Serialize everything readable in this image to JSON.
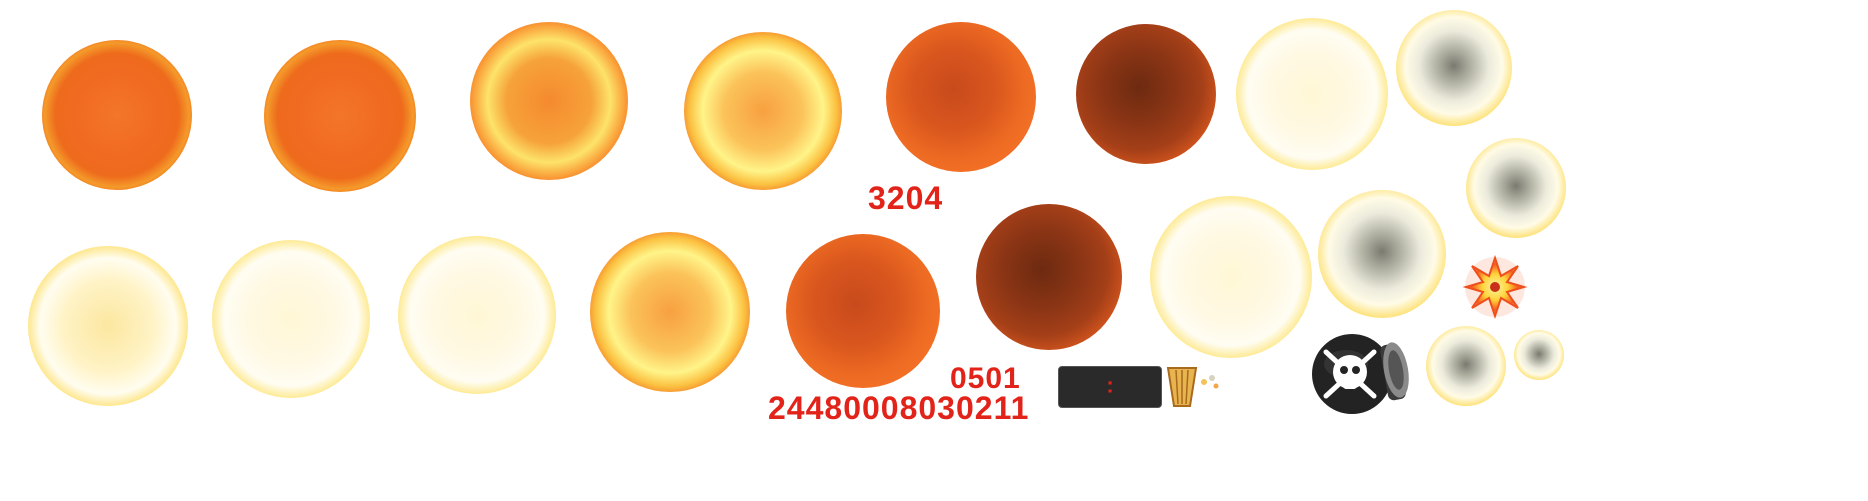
{
  "labels": {
    "counter_mid": "3204",
    "counter_small": "0501",
    "counter_long": "24480008030211",
    "bar_separator": ":"
  },
  "sprites": {
    "row1": [
      "orange",
      "orange",
      "yellowring",
      "brightring",
      "darkorange",
      "brown",
      "white",
      "smoke-small"
    ],
    "row2": [
      "whitehot",
      "white",
      "white",
      "brightring",
      "darkorange",
      "brown",
      "white",
      "smoke"
    ]
  },
  "colors": {
    "text_red": "#e2231a",
    "bar_dark": "#2a2a2a",
    "fire_orange": "#f16a22",
    "fire_yellow": "#fde36a",
    "smoke_brown": "#8b3515"
  },
  "icons": [
    "explosion-spark-icon",
    "bomb-skull-icon",
    "cup-icon",
    "debris-icon"
  ]
}
